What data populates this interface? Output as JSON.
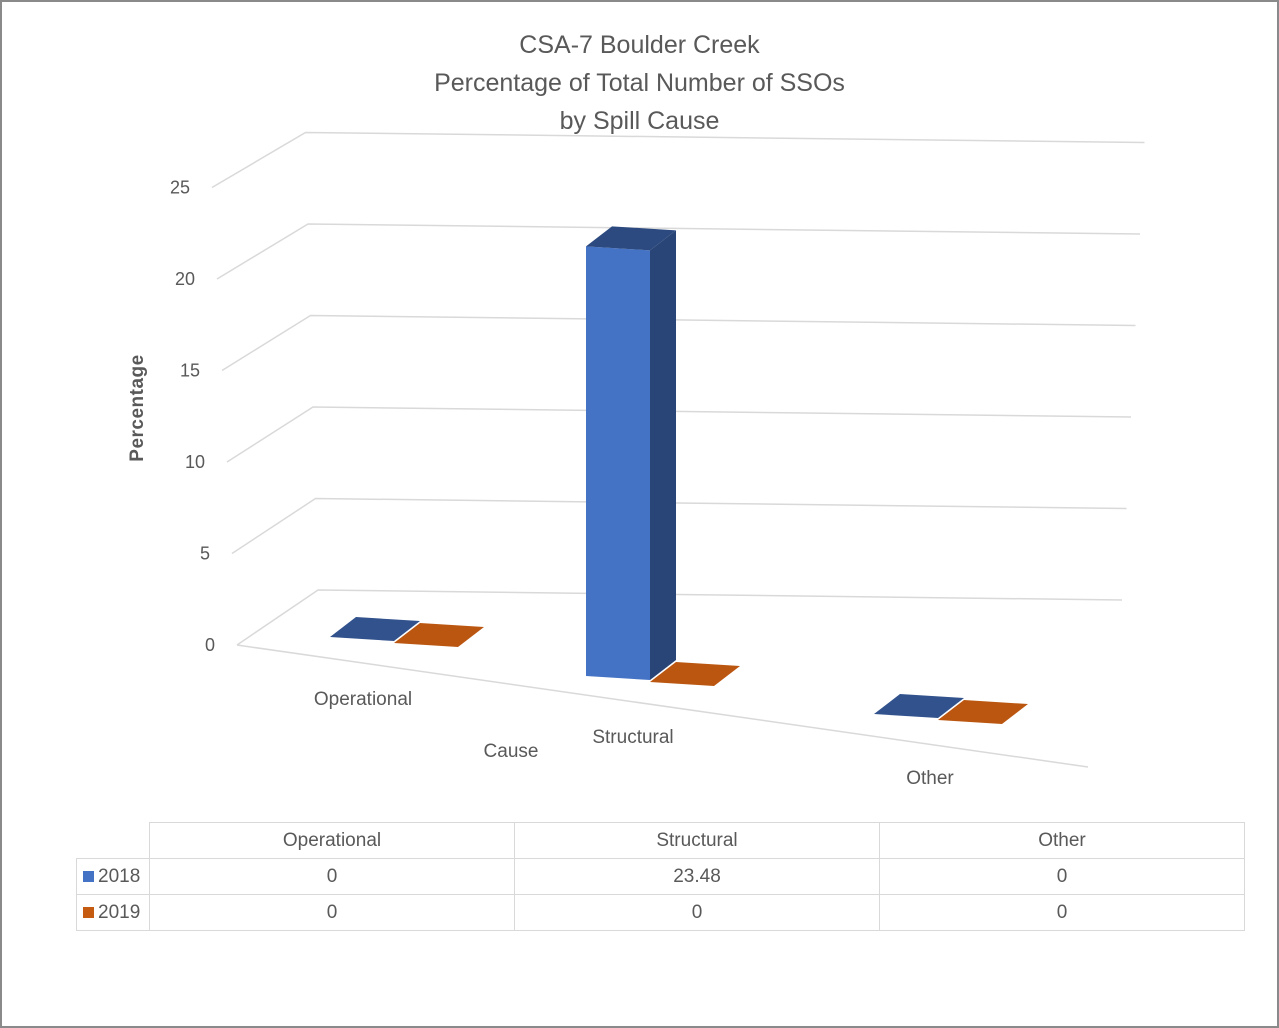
{
  "chart_data": {
    "type": "bar",
    "title": [
      "CSA-7 Boulder Creek",
      "Percentage of Total Number of SSOs",
      "by Spill Cause"
    ],
    "xlabel": "Cause",
    "ylabel": "Percentage",
    "ylim": [
      0,
      25
    ],
    "yticks": [
      "0",
      "5",
      "10",
      "15",
      "20",
      "25"
    ],
    "categories": [
      "Operational",
      "Structural",
      "Other"
    ],
    "series": [
      {
        "name": "2018",
        "color": "#4472c4",
        "values": [
          0,
          23.48,
          0
        ],
        "labels": [
          "0",
          "23.48",
          "0"
        ]
      },
      {
        "name": "2019",
        "color": "#c55a11",
        "values": [
          0,
          0,
          0
        ],
        "labels": [
          "0",
          "0",
          "0"
        ]
      }
    ],
    "grid": true,
    "legend": "data-table"
  }
}
